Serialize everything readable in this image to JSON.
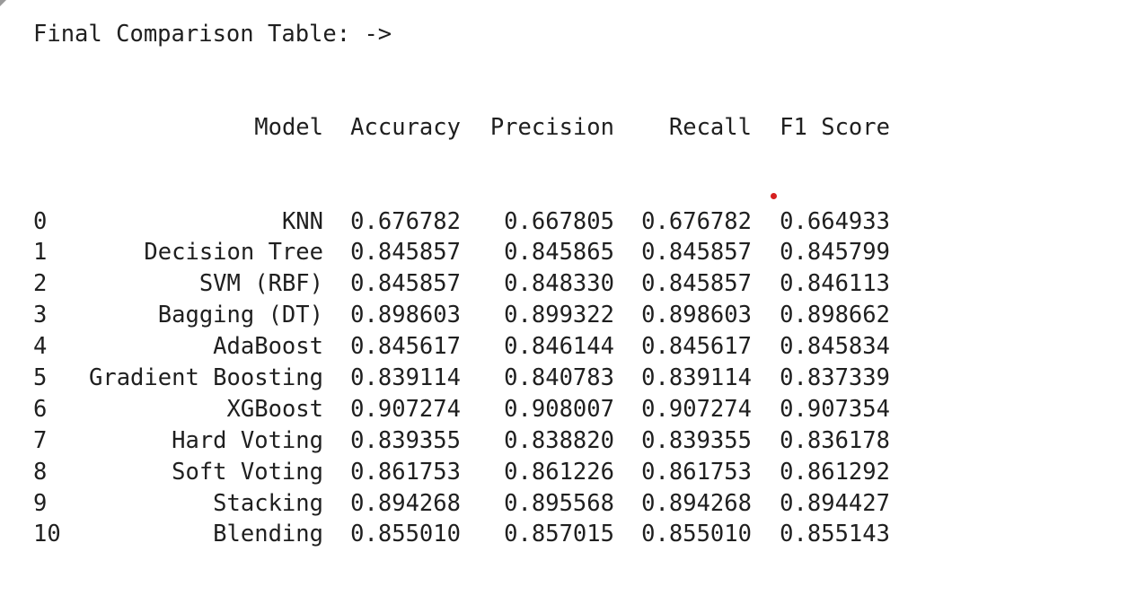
{
  "heading": "Final Comparison Table: ->",
  "columns": {
    "index": "",
    "model": "Model",
    "accuracy": "Accuracy",
    "precision": "Precision",
    "recall": "Recall",
    "f1": "F1 Score"
  },
  "rows": [
    {
      "index": "0",
      "model": "KNN",
      "accuracy": "0.676782",
      "precision": "0.667805",
      "recall": "0.676782",
      "f1": "0.664933"
    },
    {
      "index": "1",
      "model": "Decision Tree",
      "accuracy": "0.845857",
      "precision": "0.845865",
      "recall": "0.845857",
      "f1": "0.845799"
    },
    {
      "index": "2",
      "model": "SVM (RBF)",
      "accuracy": "0.845857",
      "precision": "0.848330",
      "recall": "0.845857",
      "f1": "0.846113"
    },
    {
      "index": "3",
      "model": "Bagging (DT)",
      "accuracy": "0.898603",
      "precision": "0.899322",
      "recall": "0.898603",
      "f1": "0.898662"
    },
    {
      "index": "4",
      "model": "AdaBoost",
      "accuracy": "0.845617",
      "precision": "0.846144",
      "recall": "0.845617",
      "f1": "0.845834"
    },
    {
      "index": "5",
      "model": "Gradient Boosting",
      "accuracy": "0.839114",
      "precision": "0.840783",
      "recall": "0.839114",
      "f1": "0.837339"
    },
    {
      "index": "6",
      "model": "XGBoost",
      "accuracy": "0.907274",
      "precision": "0.908007",
      "recall": "0.907274",
      "f1": "0.907354"
    },
    {
      "index": "7",
      "model": "Hard Voting",
      "accuracy": "0.839355",
      "precision": "0.838820",
      "recall": "0.839355",
      "f1": "0.836178"
    },
    {
      "index": "8",
      "model": "Soft Voting",
      "accuracy": "0.861753",
      "precision": "0.861226",
      "recall": "0.861753",
      "f1": "0.861292"
    },
    {
      "index": "9",
      "model": "Stacking",
      "accuracy": "0.894268",
      "precision": "0.895568",
      "recall": "0.894268",
      "f1": "0.894427"
    },
    {
      "index": "10",
      "model": "Blending",
      "accuracy": "0.855010",
      "precision": "0.857015",
      "recall": "0.855010",
      "f1": "0.855143"
    }
  ],
  "colors": {
    "text": "#1f1f1f",
    "background": "#ffffff",
    "cursor_dot": "#d61f1f"
  },
  "icons": {
    "corner": "collapse-corner-icon",
    "cursor": "cursor-dot-icon"
  }
}
